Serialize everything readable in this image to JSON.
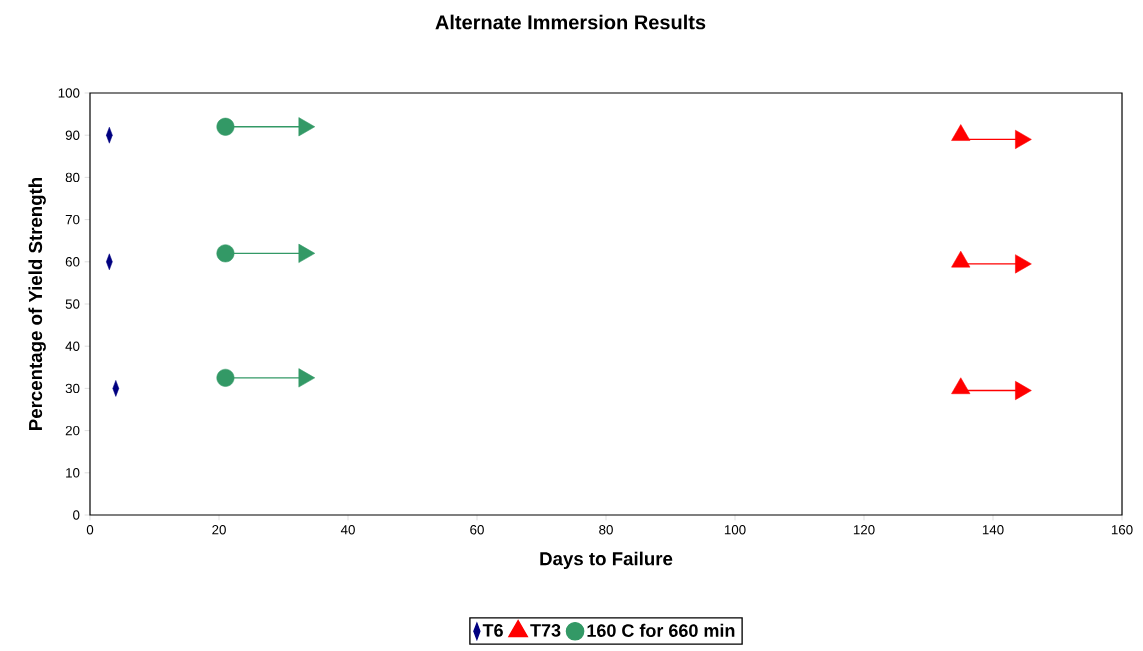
{
  "chart_data": {
    "type": "scatter",
    "title": "Alternate Immersion Results",
    "xlabel": "Days to Failure",
    "ylabel": "Percentage of Yield Strength",
    "xlim": [
      0,
      160
    ],
    "xticks": [
      0,
      20,
      40,
      60,
      80,
      100,
      120,
      140,
      160
    ],
    "ylim": [
      0,
      100
    ],
    "yticks": [
      0,
      10,
      20,
      30,
      40,
      50,
      60,
      70,
      80,
      90,
      100
    ],
    "grid": false,
    "legend": "bottom",
    "series": [
      {
        "name": "T6",
        "color": "#000080",
        "marker": "diamond",
        "x": [
          3,
          3,
          4
        ],
        "values": [
          90,
          60,
          30
        ]
      },
      {
        "name": "T73",
        "color": "#ff0000",
        "marker": "triangle",
        "x": [
          135,
          135,
          135
        ],
        "values": [
          90,
          60,
          30
        ]
      },
      {
        "name": "160 C for 660 min",
        "color": "#339966",
        "marker": "circle",
        "x": [
          21,
          21,
          21
        ],
        "values": [
          92,
          62,
          32.5
        ]
      },
      {
        "type": "line",
        "color": "#339966",
        "marker": "none",
        "x": [
          21,
          33.2
        ],
        "values": [
          92,
          92
        ]
      },
      {
        "type": "line",
        "color": "#339966",
        "marker": "none",
        "x": [
          21,
          33.2
        ],
        "values": [
          62,
          62
        ]
      },
      {
        "type": "line",
        "color": "#339966",
        "marker": "none",
        "x": [
          21,
          33.2
        ],
        "values": [
          32.5,
          32.5
        ]
      },
      {
        "type": "line",
        "color": "#ff0000",
        "marker": "none",
        "x": [
          135,
          144.3
        ],
        "values": [
          89,
          89
        ]
      },
      {
        "type": "line",
        "color": "#ff0000",
        "marker": "none",
        "x": [
          135,
          144.3
        ],
        "values": [
          59.5,
          59.5
        ]
      },
      {
        "type": "line",
        "color": "#ff0000",
        "marker": "none",
        "x": [
          135,
          144.3
        ],
        "values": [
          29.5,
          29.5
        ]
      },
      {
        "color": "#339966",
        "marker": "triangle",
        "x": [
          33.2,
          33.2,
          33.2
        ],
        "values": [
          92,
          62,
          32.5
        ]
      },
      {
        "color": "#ff0000",
        "marker": "triangle",
        "x": [
          144.3,
          144.3,
          144.3
        ],
        "values": [
          89,
          59.5,
          29.5
        ]
      }
    ]
  }
}
